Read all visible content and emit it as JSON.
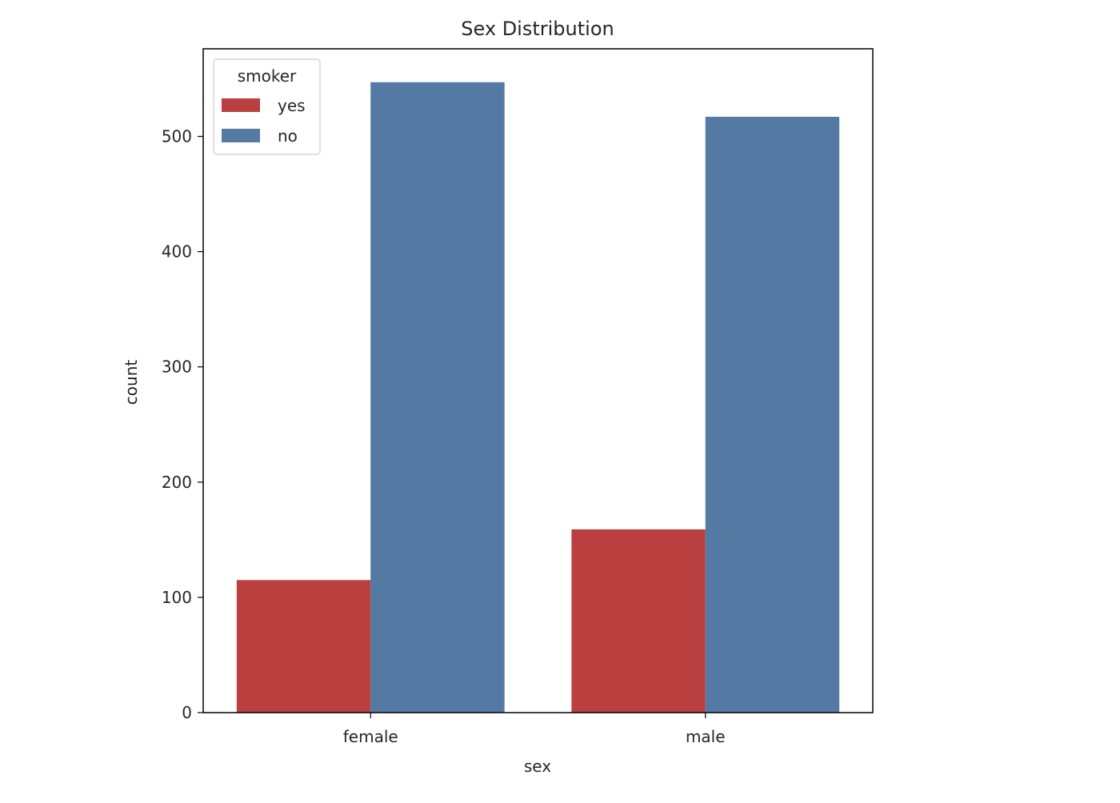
{
  "chart_data": {
    "type": "bar",
    "title": "Sex Distribution",
    "xlabel": "sex",
    "ylabel": "count",
    "categories": [
      "female",
      "male"
    ],
    "series": [
      {
        "name": "yes",
        "values": [
          115,
          159
        ],
        "color": "#b9403e"
      },
      {
        "name": "no",
        "values": [
          547,
          517
        ],
        "color": "#5479a3"
      }
    ],
    "ylim": [
      0,
      576
    ],
    "yticks": [
      0,
      100,
      200,
      300,
      400,
      500
    ],
    "grid": false,
    "legend": {
      "title": "smoker",
      "placement": "top-left"
    }
  }
}
